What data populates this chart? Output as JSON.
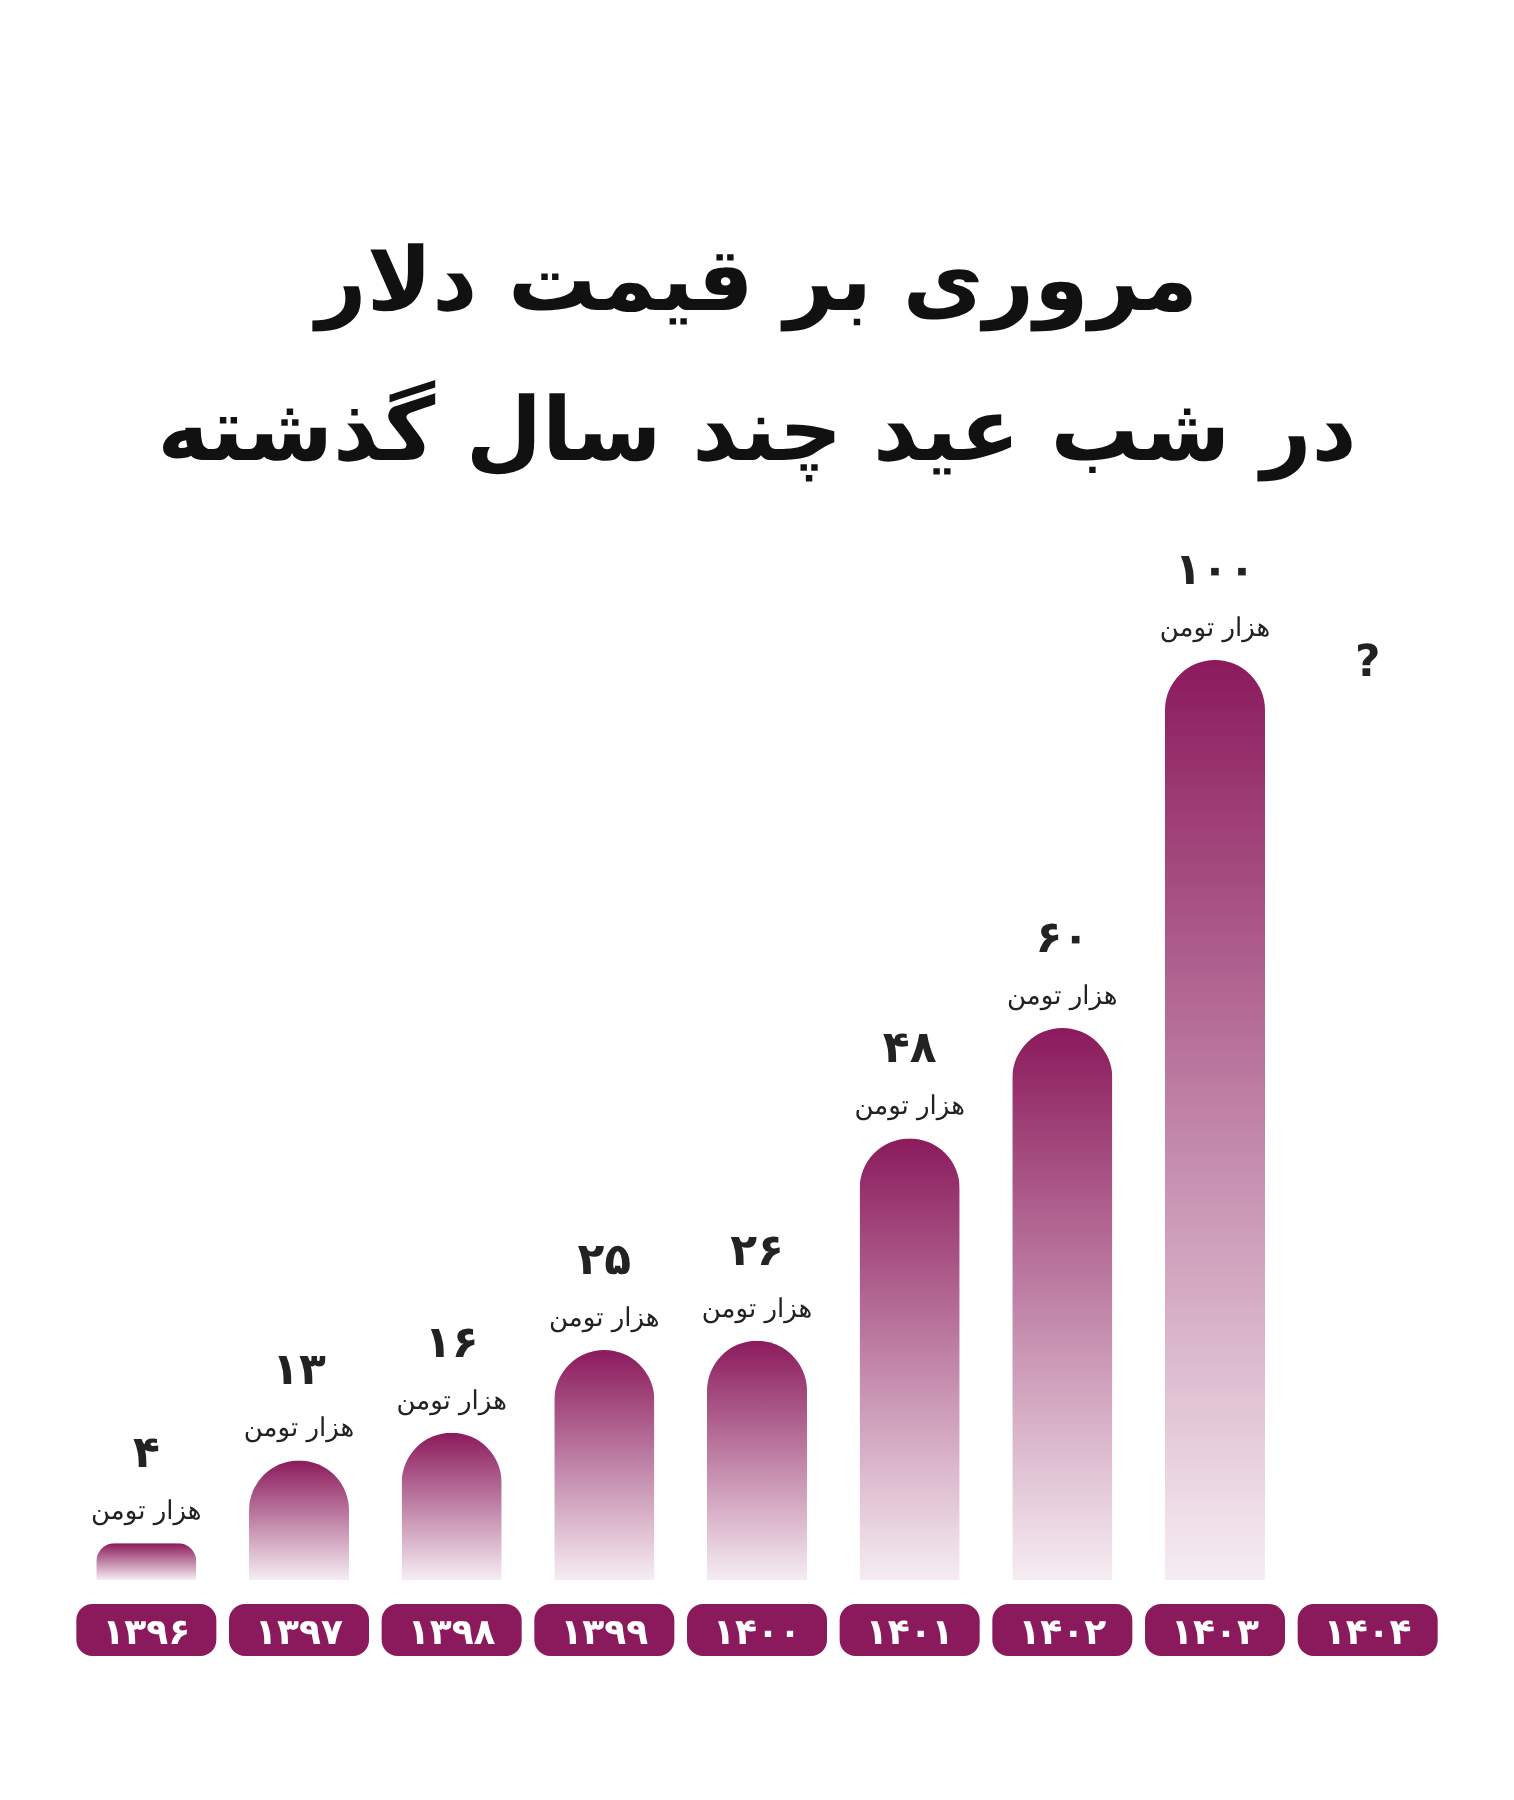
{
  "chart_data": {
    "type": "bar",
    "title": "مروری بر قیمت دلار\nدر شب عید چند سال گذشته",
    "categories": [
      "۱۳۹۶",
      "۱۳۹۷",
      "۱۳۹۸",
      "۱۳۹۹",
      "۱۴۰۰",
      "۱۴۰۱",
      "۱۴۰۲",
      "۱۴۰۳",
      "۱۴۰۴"
    ],
    "values": [
      4,
      13,
      16,
      25,
      26,
      48,
      60,
      100,
      null
    ],
    "value_labels": [
      "۴\nهزار تومن",
      "۱۳\nهزار تومن",
      "۱۶\nهزار تومن",
      "۲۵\nهزار تومن",
      "۲۶\nهزار تومن",
      "۴۸\nهزار تومن",
      "۶۰\nهزار تومن",
      "۱۰۰\nهزار تومن",
      "?"
    ],
    "color": "#8b1a5c"
  }
}
